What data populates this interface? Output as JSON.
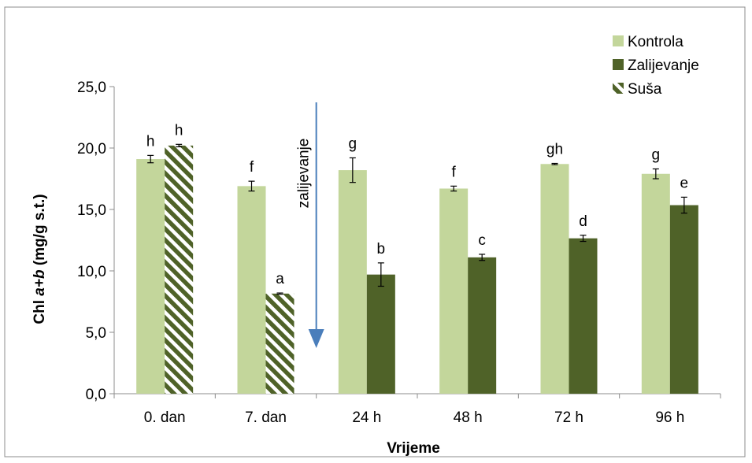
{
  "chart_data": {
    "type": "bar",
    "title": "",
    "xlabel": "Vrijeme",
    "ylabel_prefix": "Chl ",
    "ylabel_emph": "a+b",
    "ylabel_suffix": " (mg/g s.t.)",
    "ylim": [
      0,
      25
    ],
    "yticks": [
      "0,0",
      "5,0",
      "10,0",
      "15,0",
      "20,0",
      "25,0"
    ],
    "ytick_values": [
      0,
      5,
      10,
      15,
      20,
      25
    ],
    "categories": [
      "0. dan",
      "7. dan",
      "24 h",
      "48 h",
      "72 h",
      "96 h"
    ],
    "series": [
      {
        "name": "Kontrola",
        "color": "#c3d69b",
        "pattern": "solid",
        "values": [
          19.1,
          16.9,
          18.2,
          16.7,
          18.7,
          17.9
        ],
        "errors": [
          0.3,
          0.4,
          1.0,
          0.2,
          0.05,
          0.4
        ],
        "labels": [
          "h",
          "f",
          "g",
          "f",
          "gh",
          "g"
        ]
      },
      {
        "name": "Zalijevanje",
        "color": "#4f6228",
        "pattern": "solid",
        "values": [
          null,
          null,
          9.7,
          11.1,
          12.65,
          15.35
        ],
        "errors": [
          null,
          null,
          0.95,
          0.25,
          0.25,
          0.65
        ],
        "labels": [
          "",
          "",
          "b",
          "c",
          "d",
          "e"
        ]
      },
      {
        "name": "Suša",
        "color": "#4f6228",
        "pattern": "diagonal-stripes",
        "values": [
          20.2,
          8.15,
          null,
          null,
          null,
          null
        ],
        "errors": [
          0.1,
          0.05,
          null,
          null,
          null,
          null
        ],
        "labels": [
          "h",
          "a",
          "",
          "",
          "",
          ""
        ]
      }
    ],
    "annotation": {
      "text": "zalijevanje",
      "arrow_color": "#4a7ebb",
      "position": "between 7. dan and 24 h",
      "direction": "down"
    },
    "legend_position": "top-right",
    "grid": false
  }
}
